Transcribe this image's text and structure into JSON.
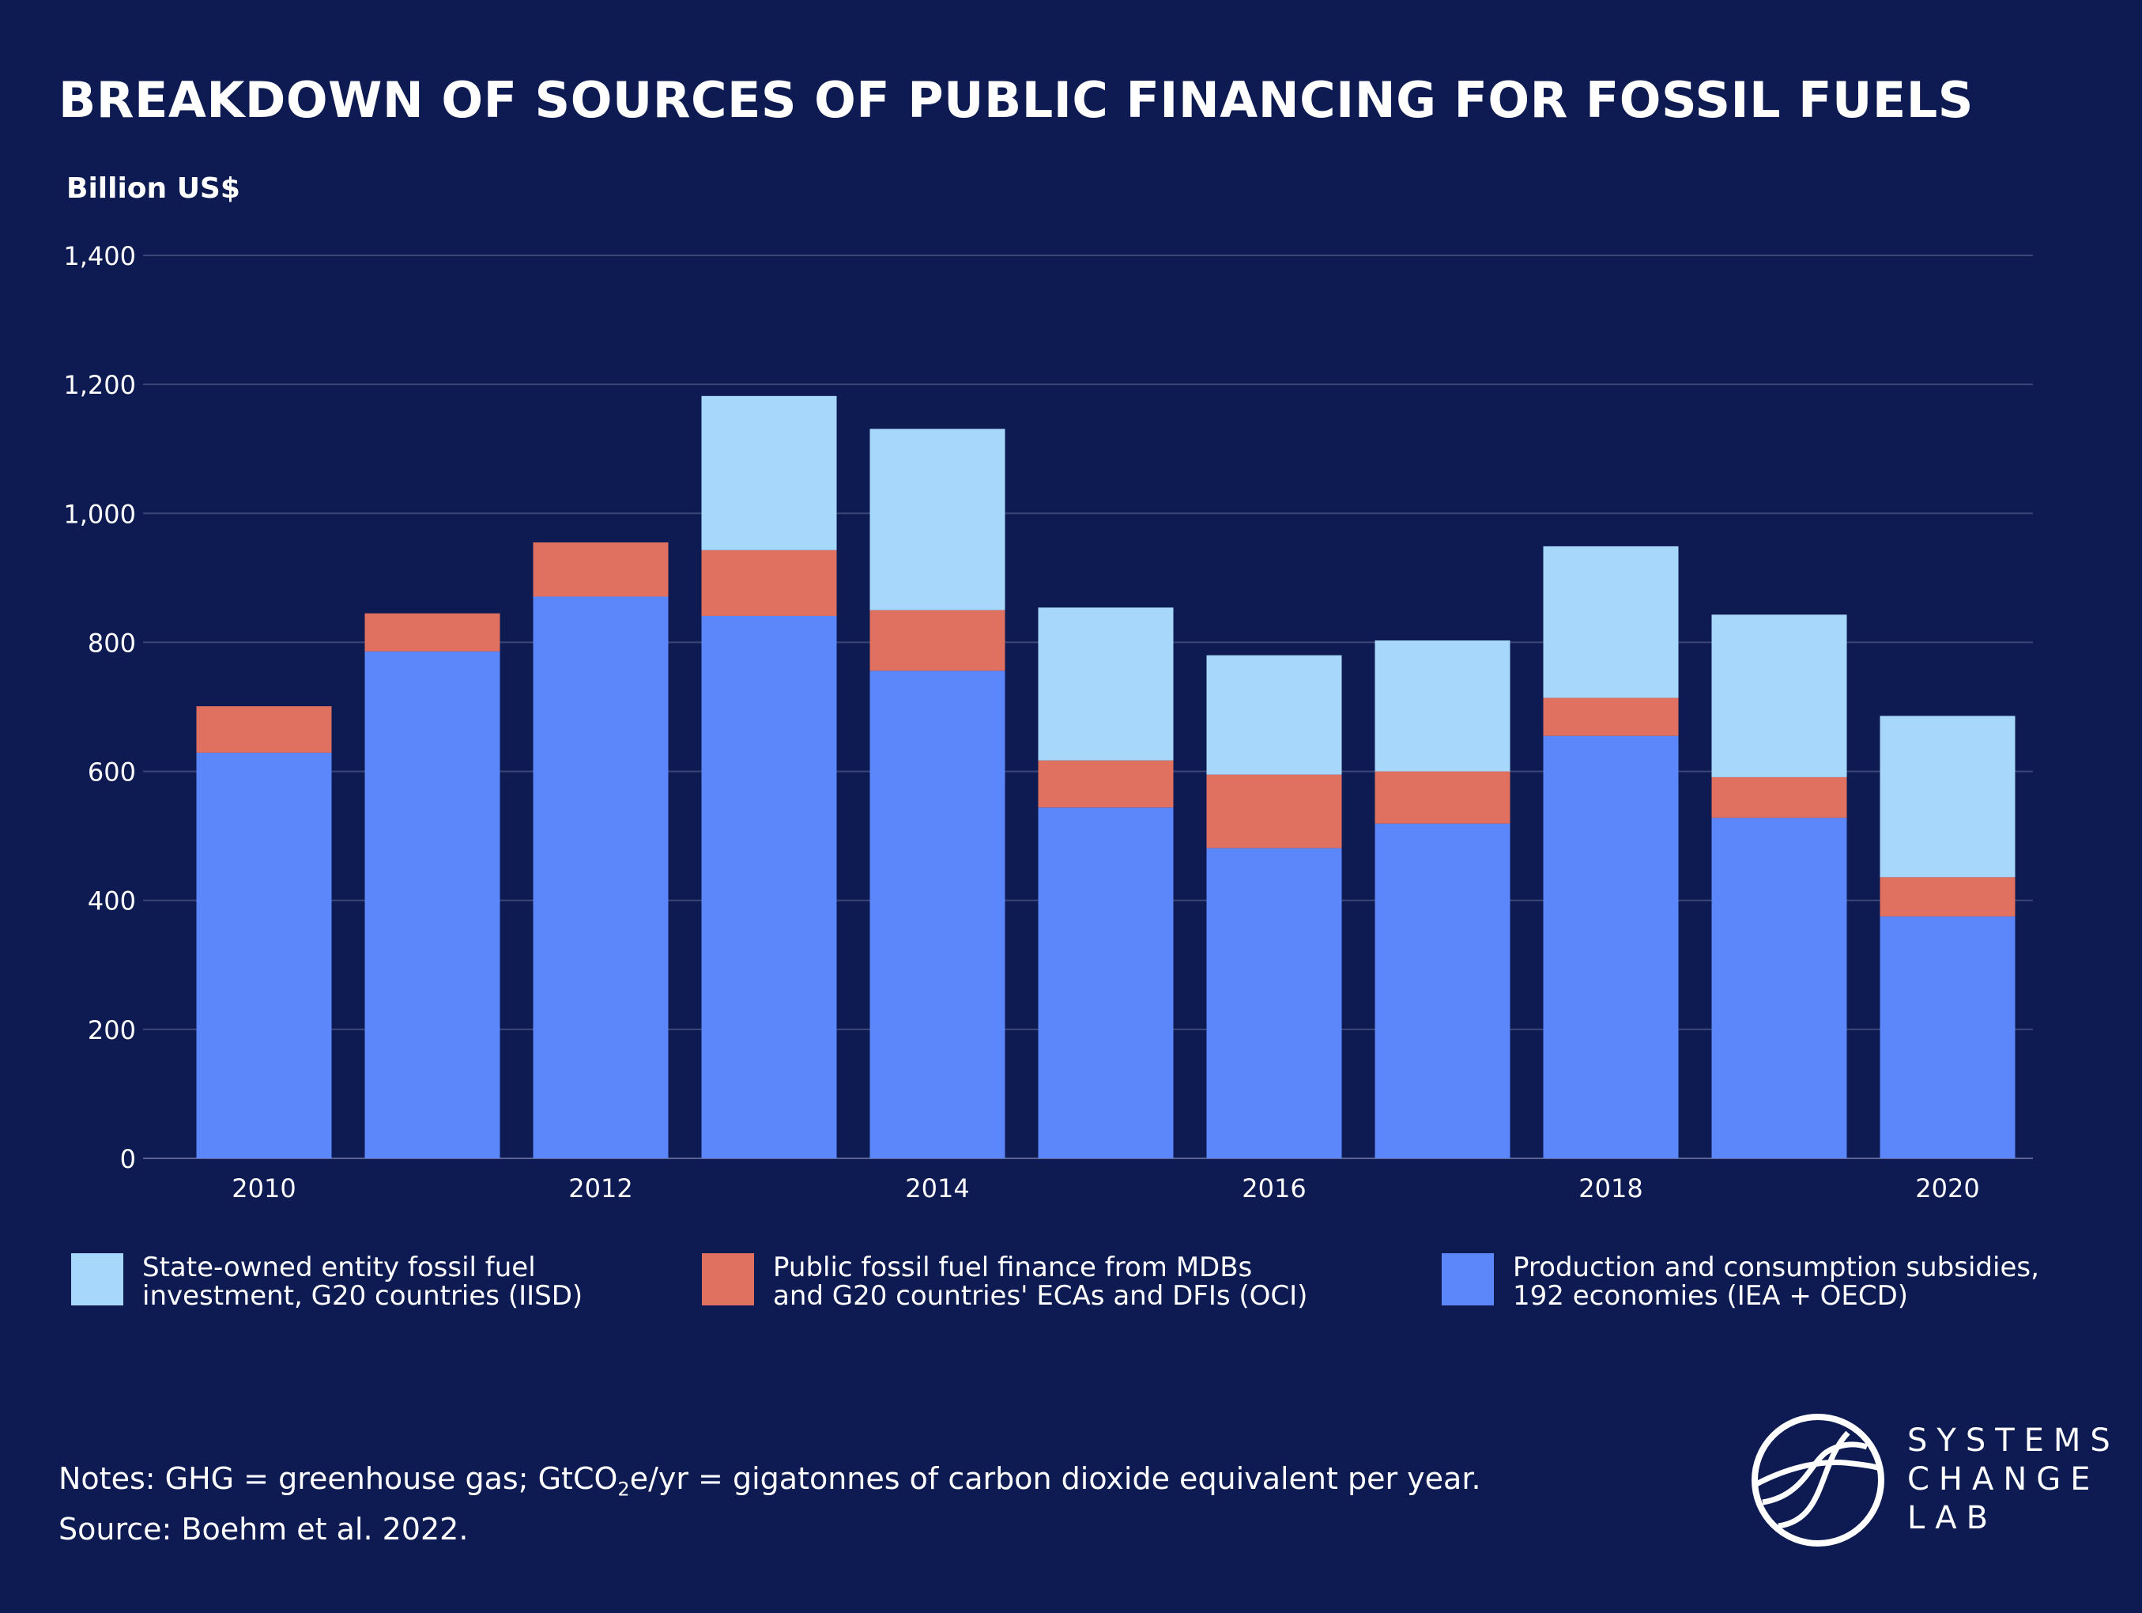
{
  "colors": {
    "background": "#0e1b52",
    "subsidies": "#5b87fb",
    "mdb_finance": "#e07060",
    "state_owned": "#a7d8fc",
    "grid": "#3a4678"
  },
  "chart_data": {
    "type": "bar",
    "stacked": true,
    "title": "BREAKDOWN OF SOURCES OF PUBLIC FINANCING FOR FOSSIL FUELS",
    "ylabel": "Billion US$",
    "xlabel": "",
    "ylim": [
      0,
      1400
    ],
    "yticks": [
      "0",
      "200",
      "400",
      "600",
      "800",
      "1,000",
      "1,200",
      "1,400"
    ],
    "ytick_values": [
      0,
      200,
      400,
      600,
      800,
      1000,
      1200,
      1400
    ],
    "categories": [
      "2010",
      "2011",
      "2012",
      "2013",
      "2014",
      "2015",
      "2016",
      "2017",
      "2018",
      "2019",
      "2020"
    ],
    "xtick_labels": [
      "2010",
      "",
      "2012",
      "",
      "2014",
      "",
      "2016",
      "",
      "2018",
      "",
      "2020"
    ],
    "grid": true,
    "legend_position": "bottom",
    "series": [
      {
        "name": "Production and consumption subsidies, 192 economies (IEA + OECD)",
        "color": "#5b87fb",
        "values": [
          629,
          786,
          871,
          841,
          756,
          544,
          481,
          519,
          655,
          528,
          375
        ]
      },
      {
        "name": "Public fossil fuel finance from MDBs and G20 countries' ECAs and DFIs (OCI)",
        "color": "#e07060",
        "values": [
          72,
          59,
          84,
          102,
          94,
          73,
          114,
          81,
          59,
          63,
          61
        ]
      },
      {
        "name": "State-owned entity fossil fuel investment, G20 countries (IISD)",
        "color": "#a7d8fc",
        "values": [
          0,
          0,
          0,
          239,
          281,
          237,
          185,
          203,
          235,
          252,
          250
        ]
      }
    ]
  },
  "legend": [
    {
      "line1": "State-owned entity fossil fuel",
      "line2": "investment, G20 countries (IISD)",
      "color": "#a7d8fc"
    },
    {
      "line1": "Public fossil fuel finance from MDBs",
      "line2": "and G20 countries' ECAs and DFIs (OCI)",
      "color": "#e07060"
    },
    {
      "line1": "Production and consumption subsidies,",
      "line2": "192 economies (IEA + OECD)",
      "color": "#5b87fb"
    }
  ],
  "notes": {
    "prefix": "Notes: GHG = greenhouse gas; GtCO",
    "sub": "2",
    "suffix": "e/yr = gigatonnes of carbon dioxide equivalent per year.",
    "source": "Source: Boehm et al. 2022."
  },
  "logo": {
    "line1": "SYSTEMS",
    "line2": "CHANGE",
    "line3": "LAB"
  }
}
